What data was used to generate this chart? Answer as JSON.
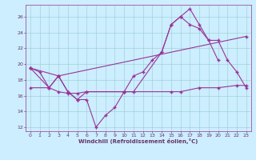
{
  "bg_color": "#cceeff",
  "line_color": "#993399",
  "grid_color": "#99cccc",
  "tick_color": "#663366",
  "xlabel": "Windchill (Refroidissement éolien,°C)",
  "xlim": [
    -0.5,
    23.5
  ],
  "ylim": [
    11.5,
    27.5
  ],
  "xticks": [
    0,
    1,
    2,
    3,
    4,
    5,
    6,
    7,
    8,
    9,
    10,
    11,
    12,
    13,
    14,
    15,
    16,
    17,
    18,
    19,
    20,
    21,
    22,
    23
  ],
  "yticks": [
    12,
    14,
    16,
    18,
    20,
    22,
    24,
    26
  ],
  "line1_x": [
    0,
    1,
    2,
    3,
    4,
    5,
    6,
    7,
    8,
    9,
    10,
    11,
    12,
    13,
    14,
    15,
    16,
    17,
    18,
    19,
    20
  ],
  "line1_y": [
    19.5,
    19.0,
    17.0,
    18.5,
    16.5,
    15.5,
    15.5,
    12.0,
    13.5,
    14.5,
    16.5,
    18.5,
    19.0,
    20.5,
    21.5,
    25.0,
    26.0,
    27.0,
    25.0,
    23.0,
    20.5
  ],
  "line2_x": [
    0,
    2,
    3,
    4,
    5,
    6,
    10,
    11,
    14,
    15,
    16,
    17,
    18,
    19,
    20,
    21,
    22,
    23
  ],
  "line2_y": [
    19.5,
    17.0,
    18.5,
    16.5,
    15.5,
    16.5,
    16.5,
    16.5,
    21.5,
    25.0,
    26.0,
    25.0,
    24.5,
    23.0,
    23.0,
    20.5,
    19.0,
    17.0
  ],
  "line3_x": [
    0,
    3,
    23
  ],
  "line3_y": [
    19.5,
    18.5,
    23.5
  ],
  "line4_x": [
    0,
    2,
    3,
    4,
    5,
    6,
    10,
    15,
    16,
    18,
    20,
    22,
    23
  ],
  "line4_y": [
    17.0,
    17.0,
    16.5,
    16.3,
    16.3,
    16.5,
    16.5,
    16.5,
    16.5,
    17.0,
    17.0,
    17.3,
    17.3
  ]
}
